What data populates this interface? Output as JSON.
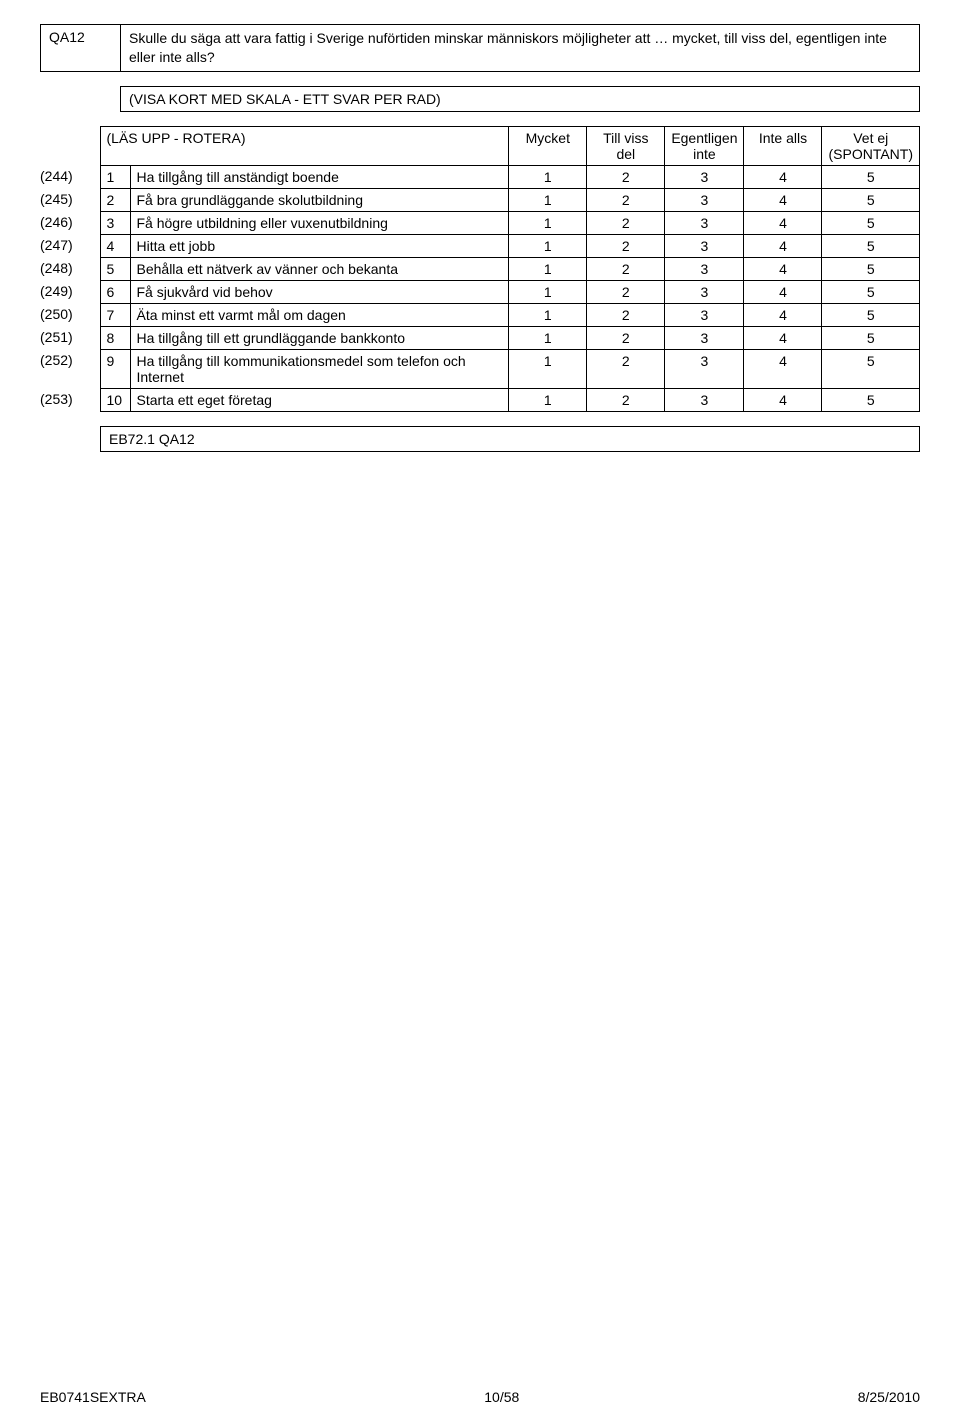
{
  "question": {
    "id": "QA12",
    "text": "Skulle du säga att vara fattig i Sverige nuförtiden minskar människors möjligheter att … mycket, till viss del, egentligen inte eller inte alls?"
  },
  "instruction": "(VISA KORT MED SKALA - ETT SVAR PER RAD)",
  "header": {
    "rotera": "(LÄS UPP - ROTERA)",
    "cols": [
      "Mycket",
      "Till viss del",
      "Egentligen inte",
      "Inte alls",
      "Vet ej (SPONTANT)"
    ]
  },
  "rows": [
    {
      "code": "(244)",
      "n": "1",
      "label": "Ha tillgång till anständigt boende",
      "vals": [
        "1",
        "2",
        "3",
        "4",
        "5"
      ]
    },
    {
      "code": "(245)",
      "n": "2",
      "label": "Få bra grundläggande skolutbildning",
      "vals": [
        "1",
        "2",
        "3",
        "4",
        "5"
      ]
    },
    {
      "code": "(246)",
      "n": "3",
      "label": "Få högre utbildning eller vuxenutbildning",
      "vals": [
        "1",
        "2",
        "3",
        "4",
        "5"
      ]
    },
    {
      "code": "(247)",
      "n": "4",
      "label": "Hitta ett jobb",
      "vals": [
        "1",
        "2",
        "3",
        "4",
        "5"
      ]
    },
    {
      "code": "(248)",
      "n": "5",
      "label": "Behålla ett nätverk av vänner och bekanta",
      "vals": [
        "1",
        "2",
        "3",
        "4",
        "5"
      ]
    },
    {
      "code": "(249)",
      "n": "6",
      "label": "Få sjukvård vid behov",
      "vals": [
        "1",
        "2",
        "3",
        "4",
        "5"
      ]
    },
    {
      "code": "(250)",
      "n": "7",
      "label": "Äta minst ett varmt mål om dagen",
      "vals": [
        "1",
        "2",
        "3",
        "4",
        "5"
      ]
    },
    {
      "code": "(251)",
      "n": "8",
      "label": "Ha tillgång till ett grundläggande bankkonto",
      "vals": [
        "1",
        "2",
        "3",
        "4",
        "5"
      ]
    },
    {
      "code": "(252)",
      "n": "9",
      "label": "Ha tillgång till kommunikationsmedel som telefon och Internet",
      "vals": [
        "1",
        "2",
        "3",
        "4",
        "5"
      ]
    },
    {
      "code": "(253)",
      "n": "10",
      "label": "Starta ett eget företag",
      "vals": [
        "1",
        "2",
        "3",
        "4",
        "5"
      ]
    }
  ],
  "ref": "EB72.1 QA12",
  "footer": {
    "left": "EB0741SEXTRA",
    "center": "10/58",
    "right": "8/25/2010"
  }
}
